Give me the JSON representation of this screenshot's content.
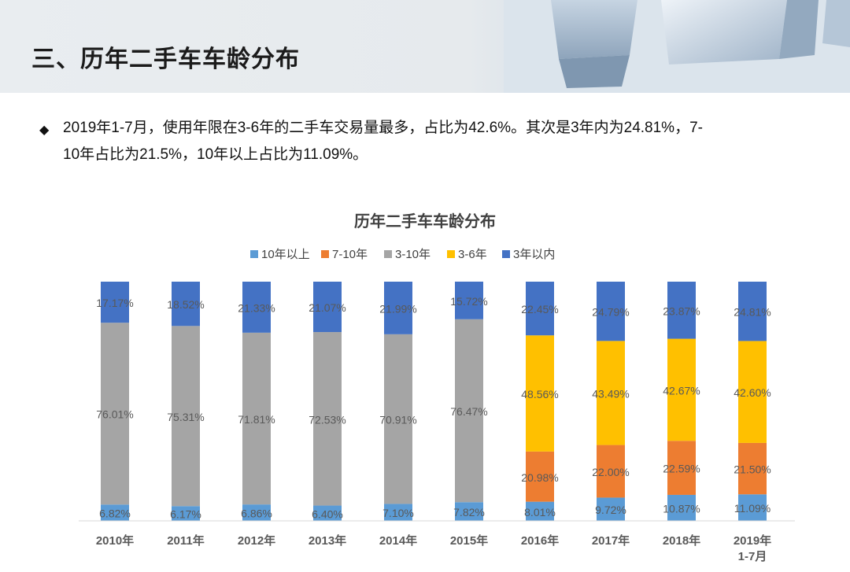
{
  "header": {
    "title": "三、历年二手车车龄分布"
  },
  "bullet": {
    "line1": "2019年1-7月，使用年限在3-6年的二手车交易量最多，占比为42.6%。其次是3年内为24.81%，7-",
    "line2": "10年占比为21.5%，10年以上占比为11.09%。"
  },
  "chart_data": {
    "type": "bar",
    "stacked": true,
    "title": "历年二手车车龄分布",
    "legend_position": "top",
    "categories": [
      "2010年",
      "2011年",
      "2012年",
      "2013年",
      "2014年",
      "2015年",
      "2016年",
      "2017年",
      "2018年",
      "2019年\n1-7月"
    ],
    "ylim": [
      0,
      100
    ],
    "grid": false,
    "series": [
      {
        "name": "10年以上",
        "color": "#5b9bd5",
        "values": [
          6.82,
          6.17,
          6.86,
          6.4,
          7.1,
          7.82,
          8.01,
          9.72,
          10.87,
          11.09
        ],
        "labels": [
          "6.82%",
          "6.17%",
          "6.86%",
          "6.40%",
          "7.10%",
          "7.82%",
          "8.01%",
          "9.72%",
          "10.87%",
          "11.09%"
        ]
      },
      {
        "name": "7-10年",
        "color": "#ed7d31",
        "values": [
          0,
          0,
          0,
          0,
          0,
          0,
          20.98,
          22.0,
          22.59,
          21.5
        ],
        "labels": [
          "",
          "",
          "",
          "",
          "",
          "",
          "20.98%",
          "22.00%",
          "22.59%",
          "21.50%"
        ]
      },
      {
        "name": "3-10年",
        "color": "#a5a5a5",
        "values": [
          76.01,
          75.31,
          71.81,
          72.53,
          70.91,
          76.47,
          0,
          0,
          0,
          0
        ],
        "labels": [
          "76.01%",
          "75.31%",
          "71.81%",
          "72.53%",
          "70.91%",
          "76.47%",
          "",
          "",
          "",
          ""
        ]
      },
      {
        "name": "3-6年",
        "color": "#ffc000",
        "values": [
          0,
          0,
          0,
          0,
          0,
          0,
          48.56,
          43.49,
          42.67,
          42.6
        ],
        "labels": [
          "",
          "",
          "",
          "",
          "",
          "",
          "48.56%",
          "43.49%",
          "42.67%",
          "42.60%"
        ]
      },
      {
        "name": "3年以内",
        "color": "#4472c4",
        "values": [
          17.17,
          18.52,
          21.33,
          21.07,
          21.99,
          15.72,
          22.45,
          24.79,
          23.87,
          24.81
        ],
        "labels": [
          "17.17%",
          "18.52%",
          "21.33%",
          "21.07%",
          "21.99%",
          "15.72%",
          "22.45%",
          "24.79%",
          "23.87%",
          "24.81%"
        ]
      }
    ]
  }
}
